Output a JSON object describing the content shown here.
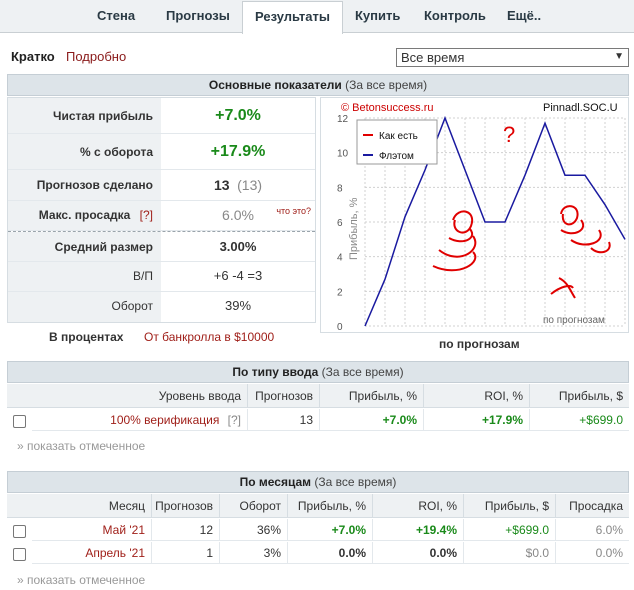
{
  "nav": {
    "tabs": [
      "Стена",
      "Прогнозы",
      "Результаты",
      "Купить",
      "Контроль",
      "Ещё.."
    ],
    "active": "Результаты"
  },
  "subnav": {
    "short": "Кратко",
    "detailed": "Подробно"
  },
  "period_select": {
    "value": "Все время"
  },
  "main_header": {
    "title": "Основные показатели",
    "note": "(За все время)"
  },
  "metrics": [
    {
      "label": "Чистая прибыль",
      "value": "+7.0%"
    },
    {
      "label": "% с оборота",
      "value": "+17.9%"
    },
    {
      "label": "Прогнозов сделано",
      "value": "13",
      "extra": "(13)"
    },
    {
      "label": "Макс. просадка",
      "help": "[?]",
      "value": "6.0%",
      "hint": "что это?"
    },
    {
      "label": "Средний размер",
      "value": "3.00%"
    },
    {
      "label": "В/П",
      "value": "+6 -4 =3"
    },
    {
      "label": "Оборот",
      "value": "39%"
    }
  ],
  "percent_row": {
    "label": "В процентах",
    "link": "От банкролла в $10000"
  },
  "chart_caption": "по прогнозам",
  "chart_data": {
    "type": "line",
    "watermark": "© Betonsuccess.ru",
    "site": "Pinnadl.SOC.U",
    "ylabel": "Прибыль, %",
    "xlabel": "по прогнозам",
    "ylim": [
      0,
      12
    ],
    "yticks": [
      0,
      2,
      4,
      6,
      8,
      10,
      12
    ],
    "legend": [
      "Как есть",
      "Флэтом"
    ],
    "legend_colors": [
      "#e00000",
      "#1a1aa0"
    ],
    "series": [
      {
        "name": "Флэтом",
        "x": [
          0,
          1,
          2,
          3,
          4,
          5,
          6,
          7,
          8,
          9,
          10,
          11,
          12,
          13
        ],
        "values": [
          0,
          2.7,
          6.3,
          9.0,
          12.0,
          9.0,
          6.0,
          6.0,
          8.7,
          11.7,
          8.7,
          8.7,
          7.0,
          5.0
        ]
      }
    ],
    "annotations": [
      "?"
    ],
    "colors": {
      "line": "#1a1aa0",
      "grid": "#d0d0d0",
      "scribble": "#e00000"
    }
  },
  "type_section": {
    "title": "По типу ввода",
    "note": "(За все время)",
    "columns": [
      "Уровень ввода",
      "Прогнозов",
      "Прибыль, %",
      "ROI, %",
      "Прибыль, $"
    ],
    "rows": [
      {
        "level": "100% верификация",
        "help": "[?]",
        "count": "13",
        "profit_pct": "+7.0%",
        "roi": "+17.9%",
        "profit_usd": "+$699.0"
      }
    ],
    "show_selected": "» показать отмеченное"
  },
  "month_section": {
    "title": "По месяцам",
    "note": "(За все время)",
    "columns": [
      "Месяц",
      "Прогнозов",
      "Оборот",
      "Прибыль, %",
      "ROI, %",
      "Прибыль, $",
      "Просадка"
    ],
    "rows": [
      {
        "month": "Май '21",
        "count": "12",
        "turnover": "36%",
        "profit_pct": "+7.0%",
        "roi": "+19.4%",
        "profit_usd": "+$699.0",
        "drawdown": "6.0%"
      },
      {
        "month": "Апрель '21",
        "count": "1",
        "turnover": "3%",
        "profit_pct": "0.0%",
        "roi": "0.0%",
        "profit_usd": "$0.0",
        "drawdown": "0.0%"
      }
    ],
    "show_selected": "» показать отмеченное"
  }
}
